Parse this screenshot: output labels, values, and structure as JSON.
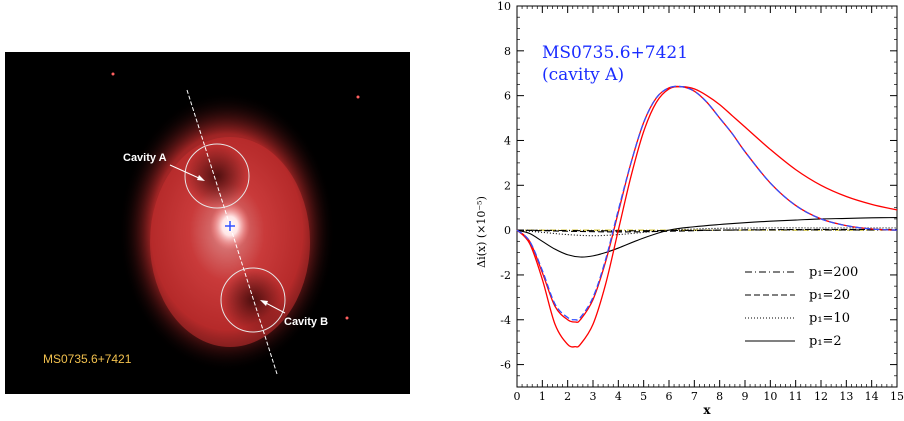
{
  "image_panel": {
    "cavity_a_label": "Cavity A",
    "cavity_b_label": "Cavity B",
    "cluster_label": "MS0735.6+7421",
    "label_color": "#f2c14e",
    "annotation_color": "#ffffff",
    "emission_color": "#d23a3a",
    "center_marker_color": "#3050ff"
  },
  "chart_data": {
    "type": "line",
    "title_lines": [
      "MS0735.6+7421",
      "(cavity A)"
    ],
    "title_color": "#1a2cff",
    "xlabel": "x",
    "ylabel": "Δi(x) (×10⁻⁵)",
    "xlim": [
      0,
      15
    ],
    "ylim": [
      -7,
      10
    ],
    "xticks": [
      "0",
      "1",
      "2",
      "3",
      "4",
      "5",
      "6",
      "7",
      "8",
      "9",
      "10",
      "11",
      "12",
      "13",
      "14",
      "15"
    ],
    "yticks": [
      "-6",
      "-4",
      "-2",
      "0",
      "2",
      "4",
      "6",
      "8",
      "10"
    ],
    "legend_position": "bottom-right",
    "legend": [
      "p₁=200",
      "p₁=20",
      "p₁=10",
      "p₁=2"
    ],
    "series": [
      {
        "name": "p₁=200",
        "style": "dashdot",
        "color": "#000000",
        "x": [
          0,
          2,
          4,
          6,
          8,
          10,
          12,
          14,
          15
        ],
        "y": [
          0,
          -0.02,
          -0.03,
          -0.02,
          0,
          0.01,
          0.01,
          0.01,
          0.01
        ]
      },
      {
        "name": "p₁=20",
        "style": "dashed",
        "color": "#000000",
        "x": [
          0,
          2,
          4,
          6,
          8,
          10,
          12,
          14,
          15
        ],
        "y": [
          0,
          -0.05,
          -0.08,
          -0.05,
          0,
          0.02,
          0.03,
          0.03,
          0.03
        ]
      },
      {
        "name": "p₁=10",
        "style": "dotted",
        "color": "#000000",
        "x": [
          0,
          1,
          2,
          3,
          4,
          5,
          6,
          7,
          8,
          10,
          12,
          14,
          15
        ],
        "y": [
          0,
          -0.1,
          -0.2,
          -0.25,
          -0.2,
          -0.1,
          0,
          0.05,
          0.08,
          0.1,
          0.1,
          0.1,
          0.1
        ]
      },
      {
        "name": "p₁=2",
        "style": "solid",
        "color": "#000000",
        "x": [
          0,
          0.5,
          1,
          1.5,
          2,
          2.5,
          3,
          3.5,
          4,
          5,
          6,
          7,
          8,
          9,
          10,
          11,
          12,
          13,
          14,
          15
        ],
        "y": [
          0,
          -0.15,
          -0.5,
          -0.85,
          -1.1,
          -1.2,
          -1.15,
          -1.0,
          -0.8,
          -0.35,
          0,
          0.15,
          0.25,
          0.33,
          0.4,
          0.45,
          0.5,
          0.52,
          0.55,
          0.56
        ]
      },
      {
        "name": "",
        "style": "solid",
        "color": "#ff0000",
        "x": [
          0,
          0.5,
          1,
          1.5,
          2,
          2.3,
          2.5,
          3,
          3.5,
          4,
          4.5,
          5,
          5.5,
          6,
          6.5,
          7,
          7.5,
          8,
          8.5,
          9,
          10,
          11,
          12,
          13,
          14,
          15
        ],
        "y": [
          0,
          -0.6,
          -2.2,
          -4.2,
          -5.1,
          -5.2,
          -5.1,
          -4.2,
          -2.4,
          0,
          2.4,
          4.4,
          5.7,
          6.3,
          6.4,
          6.3,
          6.0,
          5.6,
          5.1,
          4.6,
          3.6,
          2.7,
          2.0,
          1.5,
          1.15,
          0.9
        ]
      },
      {
        "name": "",
        "style": "solid",
        "color": "#ff0000",
        "x": [
          0,
          0.5,
          1,
          1.5,
          2,
          2.3,
          2.5,
          3,
          3.5,
          4,
          4.5,
          5,
          5.5,
          6,
          6.5,
          7,
          7.5,
          8,
          8.5,
          9,
          10,
          11,
          12,
          13,
          14,
          15
        ],
        "y": [
          0,
          -0.5,
          -1.9,
          -3.4,
          -4.0,
          -4.1,
          -4.0,
          -3.1,
          -1.4,
          0.8,
          3.0,
          4.8,
          5.9,
          6.35,
          6.4,
          6.2,
          5.7,
          5.0,
          4.3,
          3.5,
          2.1,
          1.1,
          0.5,
          0.2,
          0.05,
          0
        ]
      },
      {
        "name": "",
        "style": "dashed",
        "color": "#3050ff",
        "x": [
          0,
          0.5,
          1,
          1.5,
          2,
          2.3,
          2.5,
          3,
          3.5,
          4,
          4.5,
          5,
          5.5,
          6,
          6.5,
          7,
          7.5,
          8,
          8.5,
          9,
          10,
          11,
          12,
          13,
          14,
          15
        ],
        "y": [
          0,
          -0.5,
          -1.8,
          -3.3,
          -3.9,
          -4.0,
          -3.9,
          -3.0,
          -1.3,
          0.9,
          3.0,
          4.8,
          5.9,
          6.35,
          6.4,
          6.2,
          5.7,
          5.0,
          4.3,
          3.5,
          2.1,
          1.1,
          0.5,
          0.2,
          0.05,
          0
        ]
      }
    ]
  }
}
